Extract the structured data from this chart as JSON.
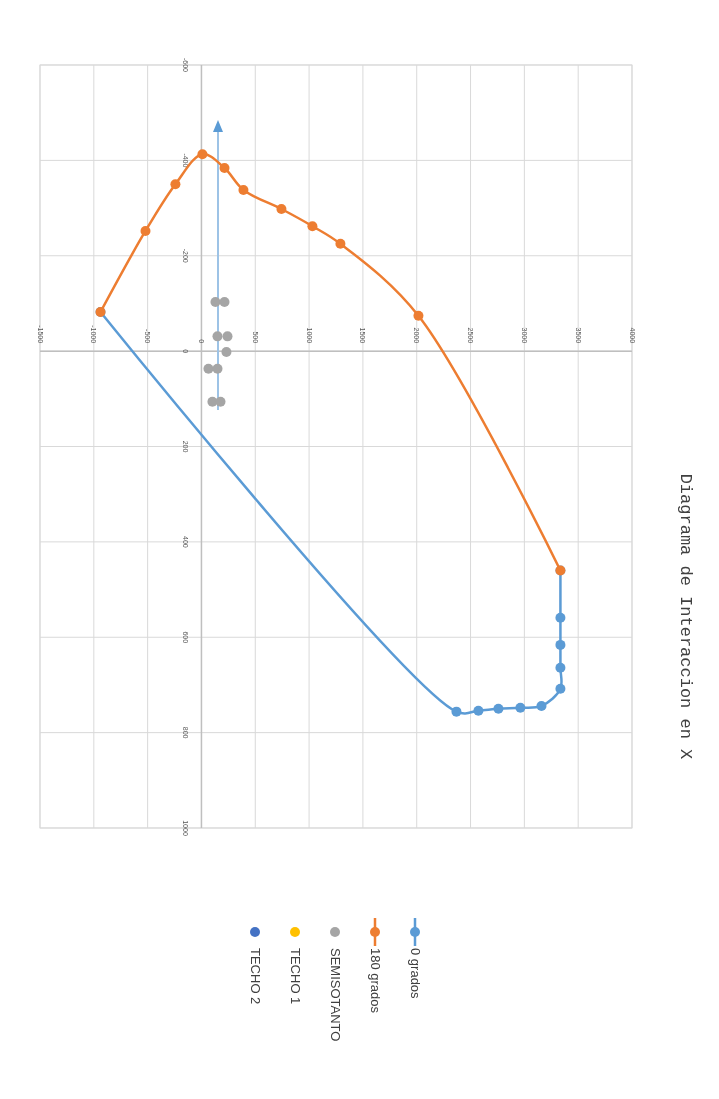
{
  "chart_data": {
    "type": "line",
    "title": "Diagrama de Interaccion en X",
    "xlim": [
      -1500,
      4000
    ],
    "xticks": [
      -1500,
      -1000,
      -500,
      0,
      500,
      1000,
      1500,
      2000,
      2500,
      3000,
      3500,
      4000
    ],
    "ylim": [
      1000,
      -600
    ],
    "yticks": [
      -600,
      -400,
      -200,
      0,
      200,
      400,
      600,
      800,
      1000
    ],
    "grid": true,
    "legend": "bottom",
    "marker": "circle",
    "line_style": "solid",
    "series": [
      {
        "name": "0 grados",
        "color": "#5b9bd5",
        "x": [
          3335,
          3335,
          3335,
          3335,
          3335,
          3159,
          2963,
          2759,
          2573,
          2369,
          -938
        ],
        "values": [
          460,
          559,
          616,
          664,
          708,
          744,
          748,
          750,
          754,
          756,
          -82
        ]
      },
      {
        "name": "180 grados",
        "color": "#ed7d31",
        "x": [
          3335,
          2016,
          1291,
          1031,
          743,
          390,
          214,
          9,
          -242,
          -520,
          -938
        ],
        "values": [
          460,
          -74,
          -225,
          -262,
          -298,
          -338,
          -384,
          -413,
          -350,
          -252,
          -82
        ]
      },
      {
        "name": "SEMISOTANTO",
        "color": "#a5a5a5",
        "type": "scatter",
        "x": [
          130,
          214,
          149,
          242,
          232,
          65,
          149,
          102,
          177
        ],
        "values": [
          -103,
          -103,
          -31,
          -31,
          2,
          37,
          37,
          106,
          106
        ]
      },
      {
        "name": "TECHO 1",
        "color": "#ffc000",
        "type": "scatter"
      },
      {
        "name": "TECHO 2",
        "color": "#4472c4",
        "type": "scatter"
      }
    ]
  }
}
